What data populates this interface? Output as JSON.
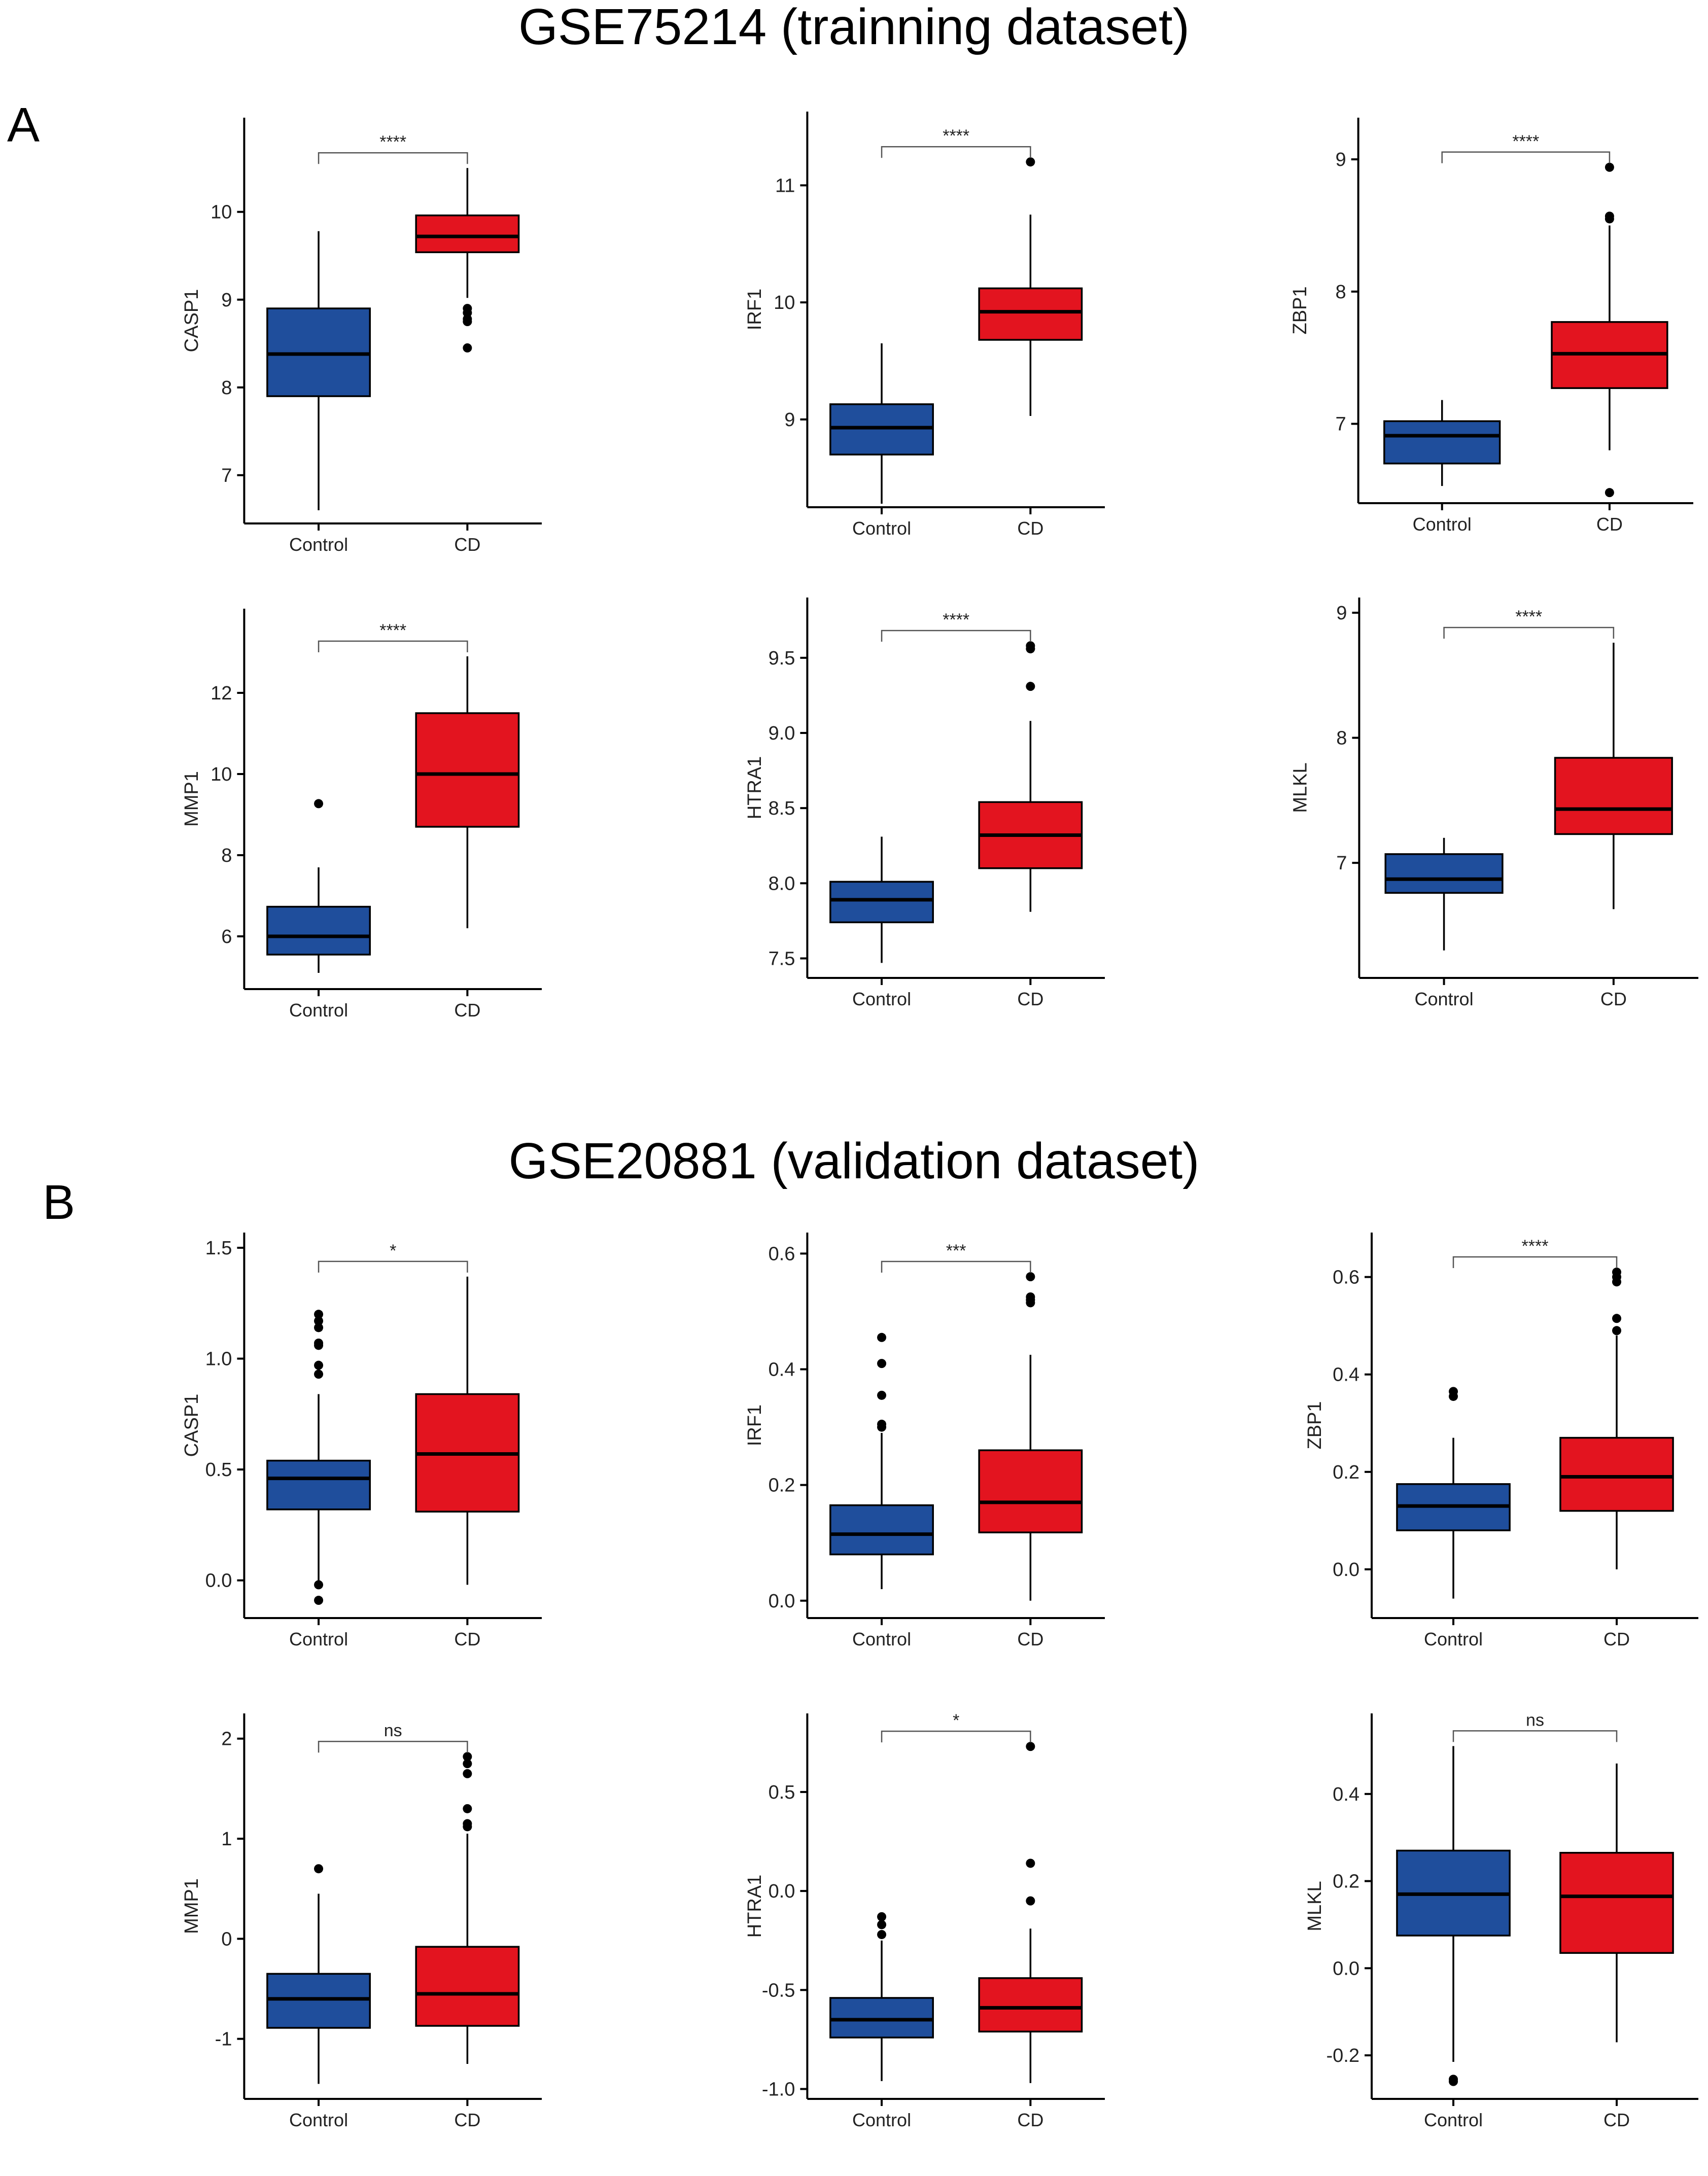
{
  "titles": {
    "a": "GSE75214 (trainning dataset)",
    "b": "GSE20881 (validation dataset)"
  },
  "panel_labels": {
    "a": "A",
    "b": "B"
  },
  "colors": {
    "control": "#1f4e9c",
    "cd": "#e3141f",
    "line": "#000000"
  },
  "chart_data": [
    {
      "id": "a1",
      "type": "box",
      "ylabel": "CASP1",
      "categories": [
        "Control",
        "CD"
      ],
      "significance": "****",
      "ylim": [
        6.45,
        10.9
      ],
      "yticks": [
        7,
        8,
        9,
        10
      ],
      "ytick_labels": [
        "7",
        "8",
        "9",
        "10"
      ],
      "boxes": [
        {
          "group": "Control",
          "whisker_low": 6.6,
          "q1": 7.9,
          "median": 8.38,
          "q3": 8.9,
          "whisker_high": 9.78,
          "outliers": []
        },
        {
          "group": "CD",
          "whisker_low": 9.02,
          "q1": 9.54,
          "median": 9.72,
          "q3": 9.96,
          "whisker_high": 10.5,
          "outliers": [
            8.9,
            8.85,
            8.78,
            8.75,
            8.45
          ]
        }
      ]
    },
    {
      "id": "a2",
      "type": "box",
      "ylabel": "IRF1",
      "categories": [
        "Control",
        "CD"
      ],
      "significance": "****",
      "ylim": [
        8.25,
        11.5
      ],
      "yticks": [
        9,
        10,
        11
      ],
      "ytick_labels": [
        "9",
        "10",
        "11"
      ],
      "boxes": [
        {
          "group": "Control",
          "whisker_low": 8.28,
          "q1": 8.7,
          "median": 8.93,
          "q3": 9.13,
          "whisker_high": 9.65,
          "outliers": []
        },
        {
          "group": "CD",
          "whisker_low": 9.03,
          "q1": 9.68,
          "median": 9.92,
          "q3": 10.12,
          "whisker_high": 10.75,
          "outliers": [
            11.2
          ]
        }
      ]
    },
    {
      "id": "a3",
      "type": "box",
      "ylabel": "ZBP1",
      "categories": [
        "Control",
        "CD"
      ],
      "significance": "****",
      "ylim": [
        6.4,
        9.2
      ],
      "yticks": [
        7,
        8,
        9
      ],
      "ytick_labels": [
        "7",
        "8",
        "9"
      ],
      "boxes": [
        {
          "group": "Control",
          "whisker_low": 6.53,
          "q1": 6.7,
          "median": 6.91,
          "q3": 7.02,
          "whisker_high": 7.18,
          "outliers": []
        },
        {
          "group": "CD",
          "whisker_low": 6.8,
          "q1": 7.27,
          "median": 7.53,
          "q3": 7.77,
          "whisker_high": 8.5,
          "outliers": [
            6.48,
            8.55,
            8.57,
            8.94
          ]
        }
      ]
    },
    {
      "id": "a4",
      "type": "box",
      "ylabel": "MMP1",
      "categories": [
        "Control",
        "CD"
      ],
      "significance": "****",
      "ylim": [
        4.7,
        13.7
      ],
      "yticks": [
        6,
        8,
        10,
        12
      ],
      "ytick_labels": [
        "6",
        "8",
        "10",
        "12"
      ],
      "boxes": [
        {
          "group": "Control",
          "whisker_low": 5.1,
          "q1": 5.55,
          "median": 6.0,
          "q3": 6.73,
          "whisker_high": 7.7,
          "outliers": [
            9.27
          ]
        },
        {
          "group": "CD",
          "whisker_low": 6.2,
          "q1": 8.7,
          "median": 10.0,
          "q3": 11.5,
          "whisker_high": 12.9,
          "outliers": []
        }
      ]
    },
    {
      "id": "a5",
      "type": "box",
      "ylabel": "HTRA1",
      "categories": [
        "Control",
        "CD"
      ],
      "significance": "****",
      "ylim": [
        7.37,
        9.8
      ],
      "yticks": [
        7.5,
        8.0,
        8.5,
        9.0,
        9.5
      ],
      "ytick_labels": [
        "7.5",
        "8.0",
        "8.5",
        "9.0",
        "9.5"
      ],
      "boxes": [
        {
          "group": "Control",
          "whisker_low": 7.47,
          "q1": 7.74,
          "median": 7.89,
          "q3": 8.01,
          "whisker_high": 8.31,
          "outliers": []
        },
        {
          "group": "CD",
          "whisker_low": 7.81,
          "q1": 8.1,
          "median": 8.32,
          "q3": 8.54,
          "whisker_high": 9.08,
          "outliers": [
            9.31,
            9.56,
            9.58
          ]
        }
      ]
    },
    {
      "id": "a6",
      "type": "box",
      "ylabel": "MLKL",
      "categories": [
        "Control",
        "CD"
      ],
      "significance": "****",
      "ylim": [
        6.08,
        9.0
      ],
      "yticks": [
        7,
        8,
        9
      ],
      "ytick_labels": [
        "7",
        "8",
        "9"
      ],
      "boxes": [
        {
          "group": "Control",
          "whisker_low": 6.3,
          "q1": 6.76,
          "median": 6.87,
          "q3": 7.07,
          "whisker_high": 7.2,
          "outliers": []
        },
        {
          "group": "CD",
          "whisker_low": 6.63,
          "q1": 7.23,
          "median": 7.43,
          "q3": 7.84,
          "whisker_high": 8.76,
          "outliers": []
        }
      ]
    },
    {
      "id": "b1",
      "type": "box",
      "ylabel": "CASP1",
      "categories": [
        "Control",
        "CD"
      ],
      "significance": "*",
      "ylim": [
        -0.17,
        1.5
      ],
      "yticks": [
        0.0,
        0.5,
        1.0,
        1.5
      ],
      "ytick_labels": [
        "0.0",
        "0.5",
        "1.0",
        "1.5"
      ],
      "boxes": [
        {
          "group": "Control",
          "whisker_low": 0.0,
          "q1": 0.32,
          "median": 0.46,
          "q3": 0.54,
          "whisker_high": 0.84,
          "outliers": [
            -0.02,
            -0.09,
            0.93,
            0.97,
            1.06,
            1.07,
            1.14,
            1.17,
            1.2
          ]
        },
        {
          "group": "CD",
          "whisker_low": -0.02,
          "q1": 0.31,
          "median": 0.57,
          "q3": 0.84,
          "whisker_high": 1.37,
          "outliers": []
        }
      ]
    },
    {
      "id": "b2",
      "type": "box",
      "ylabel": "IRF1",
      "categories": [
        "Control",
        "CD"
      ],
      "significance": "***",
      "ylim": [
        -0.03,
        0.61
      ],
      "yticks": [
        0.0,
        0.2,
        0.4,
        0.6
      ],
      "ytick_labels": [
        "0.0",
        "0.2",
        "0.4",
        "0.6"
      ],
      "boxes": [
        {
          "group": "Control",
          "whisker_low": 0.02,
          "q1": 0.08,
          "median": 0.115,
          "q3": 0.165,
          "whisker_high": 0.29,
          "outliers": [
            0.3,
            0.305,
            0.355,
            0.41,
            0.455
          ]
        },
        {
          "group": "CD",
          "whisker_low": 0.0,
          "q1": 0.118,
          "median": 0.17,
          "q3": 0.26,
          "whisker_high": 0.425,
          "outliers": [
            0.515,
            0.52,
            0.525,
            0.56
          ]
        }
      ]
    },
    {
      "id": "b3",
      "type": "box",
      "ylabel": "ZBP1",
      "categories": [
        "Control",
        "CD"
      ],
      "significance": "****",
      "ylim": [
        -0.1,
        0.66
      ],
      "yticks": [
        0.0,
        0.2,
        0.4,
        0.6
      ],
      "ytick_labels": [
        "0.0",
        "0.2",
        "0.4",
        "0.6"
      ],
      "boxes": [
        {
          "group": "Control",
          "whisker_low": -0.06,
          "q1": 0.08,
          "median": 0.13,
          "q3": 0.175,
          "whisker_high": 0.27,
          "outliers": [
            0.355,
            0.365
          ]
        },
        {
          "group": "CD",
          "whisker_low": 0.0,
          "q1": 0.12,
          "median": 0.19,
          "q3": 0.27,
          "whisker_high": 0.48,
          "outliers": [
            0.49,
            0.515,
            0.59,
            0.6,
            0.61
          ]
        }
      ]
    },
    {
      "id": "b4",
      "type": "box",
      "ylabel": "MMP1",
      "categories": [
        "Control",
        "CD"
      ],
      "significance": "ns",
      "ylim": [
        -1.6,
        2.1
      ],
      "yticks": [
        -1,
        0,
        1,
        2
      ],
      "ytick_labels": [
        "-1",
        "0",
        "1",
        "2"
      ],
      "boxes": [
        {
          "group": "Control",
          "whisker_low": -1.45,
          "q1": -0.89,
          "median": -0.6,
          "q3": -0.35,
          "whisker_high": 0.45,
          "outliers": [
            0.7
          ]
        },
        {
          "group": "CD",
          "whisker_low": -1.25,
          "q1": -0.87,
          "median": -0.55,
          "q3": -0.08,
          "whisker_high": 1.05,
          "outliers": [
            1.12,
            1.15,
            1.3,
            1.65,
            1.75,
            1.82
          ]
        }
      ]
    },
    {
      "id": "b5",
      "type": "box",
      "ylabel": "HTRA1",
      "categories": [
        "Control",
        "CD"
      ],
      "significance": "*",
      "ylim": [
        -1.05,
        0.82
      ],
      "yticks": [
        -1.0,
        -0.5,
        0.0,
        0.5
      ],
      "ytick_labels": [
        "-1.0",
        "-0.5",
        "0.0",
        "0.5"
      ],
      "boxes": [
        {
          "group": "Control",
          "whisker_low": -0.96,
          "q1": -0.74,
          "median": -0.65,
          "q3": -0.54,
          "whisker_high": -0.25,
          "outliers": [
            -0.13,
            -0.17,
            -0.22
          ]
        },
        {
          "group": "CD",
          "whisker_low": -0.97,
          "q1": -0.71,
          "median": -0.59,
          "q3": -0.44,
          "whisker_high": -0.19,
          "outliers": [
            -0.05,
            0.14,
            0.73
          ]
        }
      ]
    },
    {
      "id": "b6",
      "type": "box",
      "ylabel": "MLKL",
      "categories": [
        "Control",
        "CD"
      ],
      "significance": "ns",
      "ylim": [
        -0.3,
        0.55
      ],
      "yticks": [
        -0.2,
        0.0,
        0.2,
        0.4
      ],
      "ytick_labels": [
        "-0.2",
        "0.0",
        "0.2",
        "0.4"
      ],
      "boxes": [
        {
          "group": "Control",
          "whisker_low": -0.215,
          "q1": 0.075,
          "median": 0.17,
          "q3": 0.27,
          "whisker_high": 0.51,
          "outliers": [
            -0.255,
            -0.26
          ]
        },
        {
          "group": "CD",
          "whisker_low": -0.17,
          "q1": 0.035,
          "median": 0.165,
          "q3": 0.265,
          "whisker_high": 0.47,
          "outliers": []
        }
      ]
    }
  ]
}
